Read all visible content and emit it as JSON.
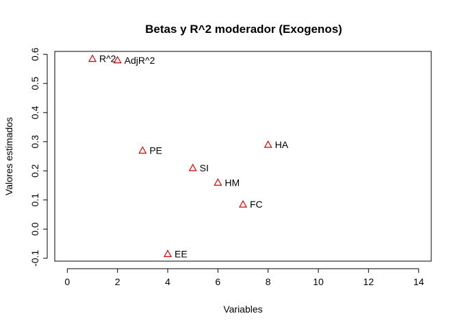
{
  "chart_data": {
    "type": "scatter",
    "title": "Betas y R^2 moderador (Exogenos)",
    "xlabel": "Variables",
    "ylabel": "Valores estimados",
    "xlim": [
      -0.5,
      14.5
    ],
    "ylim": [
      -0.11,
      0.61
    ],
    "xticks": [
      0,
      2,
      4,
      6,
      8,
      10,
      12,
      14
    ],
    "yticks": [
      -0.1,
      0.0,
      0.1,
      0.2,
      0.3,
      0.4,
      0.5,
      0.6
    ],
    "grid": false,
    "marker": "open-triangle",
    "marker_color": "#cc0000",
    "points": [
      {
        "x": 1,
        "y": 0.585,
        "label": "R^2"
      },
      {
        "x": 2,
        "y": 0.58,
        "label": "AdjR^2"
      },
      {
        "x": 3,
        "y": 0.27,
        "label": "PE"
      },
      {
        "x": 4,
        "y": -0.085,
        "label": "EE"
      },
      {
        "x": 5,
        "y": 0.21,
        "label": "SI"
      },
      {
        "x": 6,
        "y": 0.16,
        "label": "HM"
      },
      {
        "x": 7,
        "y": 0.085,
        "label": "FC"
      },
      {
        "x": 8,
        "y": 0.29,
        "label": "HA"
      }
    ]
  }
}
